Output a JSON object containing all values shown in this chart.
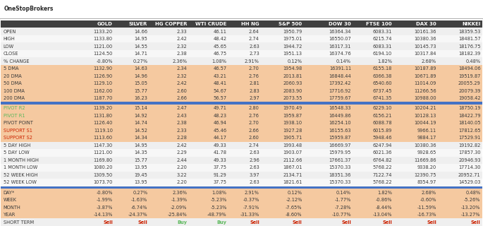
{
  "logo_text": "OneStopBrokers",
  "columns": [
    "",
    "GOLD",
    "SILVER",
    "HG COPPER",
    "WTI CRUDE",
    "HH NG",
    "S&P 500",
    "DOW 30",
    "FTSE 100",
    "DAX 30",
    "NIKKEI"
  ],
  "sections": [
    {
      "name": "ohlc",
      "bg_even": "#efefef",
      "bg_odd": "#f7f7f7",
      "rows": [
        [
          "OPEN",
          "1133.20",
          "14.66",
          "2.33",
          "46.11",
          "2.64",
          "1950.79",
          "16364.34",
          "6083.31",
          "10161.36",
          "18359.53"
        ],
        [
          "HIGH",
          "1133.80",
          "14.95",
          "2.42",
          "48.42",
          "2.74",
          "1975.01",
          "16550.07",
          "6215.74",
          "10380.36",
          "18481.57"
        ],
        [
          "LOW",
          "1121.00",
          "14.55",
          "2.32",
          "45.65",
          "2.63",
          "1944.72",
          "16317.31",
          "6083.31",
          "10145.73",
          "18176.75"
        ],
        [
          "CLOSE",
          "1124.50",
          "14.71",
          "2.38",
          "46.75",
          "2.73",
          "1951.13",
          "16374.76",
          "6194.10",
          "10317.84",
          "18182.39"
        ],
        [
          "% CHANGE",
          "-0.80%",
          "0.27%",
          "2.36%",
          "1.08%",
          "2.91%",
          "0.12%",
          "0.14%",
          "1.82%",
          "2.68%",
          "0.48%"
        ]
      ]
    },
    {
      "name": "dma",
      "bg": "#f5c9a0",
      "rows": [
        [
          "5 DMA",
          "1132.90",
          "14.63",
          "2.34",
          "46.57",
          "2.70",
          "1954.98",
          "16391.11",
          "6155.18",
          "10187.89",
          "18494.06"
        ],
        [
          "20 DMA",
          "1126.90",
          "14.96",
          "2.32",
          "43.21",
          "2.76",
          "2013.81",
          "16848.44",
          "6366.38",
          "10671.89",
          "19519.87"
        ],
        [
          "50 DMA",
          "1129.10",
          "15.05",
          "2.42",
          "48.41",
          "2.81",
          "2060.93",
          "17392.42",
          "6540.60",
          "11014.09",
          "20055.29"
        ],
        [
          "100 DMA",
          "1162.00",
          "15.77",
          "2.60",
          "54.67",
          "2.83",
          "2083.90",
          "17716.92",
          "6737.45",
          "11266.56",
          "20079.39"
        ],
        [
          "200 DMA",
          "1187.70",
          "16.23",
          "2.66",
          "56.57",
          "2.97",
          "2073.55",
          "17759.67",
          "6741.35",
          "10988.00",
          "19058.42"
        ]
      ]
    },
    {
      "name": "pivot",
      "bg": "#f5c9a0",
      "rows": [
        [
          "PIVOT R2",
          "1139.20",
          "15.14",
          "2.47",
          "49.71",
          "2.80",
          "1970.49",
          "16548.33",
          "6229.10",
          "10204.21",
          "18750.19"
        ],
        [
          "PIVOT R1",
          "1131.80",
          "14.92",
          "2.43",
          "48.23",
          "2.76",
          "1959.87",
          "16449.86",
          "6156.21",
          "10128.13",
          "18422.79"
        ],
        [
          "PIVOT POINT",
          "1126.40",
          "14.74",
          "2.38",
          "46.94",
          "2.70",
          "1938.10",
          "16254.10",
          "6088.78",
          "10044.19",
          "18140.05"
        ],
        [
          "SUPPORT S1",
          "1119.10",
          "14.52",
          "2.33",
          "45.46",
          "2.66",
          "1927.28",
          "16155.63",
          "6015.89",
          "9966.11",
          "17812.65"
        ],
        [
          "SUPPORT S2",
          "1113.60",
          "14.34",
          "2.28",
          "44.17",
          "2.60",
          "1905.71",
          "15959.87",
          "5948.46",
          "9884.17",
          "17529.91"
        ]
      ]
    },
    {
      "name": "range",
      "bg_even": "#efefef",
      "bg_odd": "#f7f7f7",
      "rows": [
        [
          "5 DAY HIGH",
          "1147.30",
          "14.95",
          "2.42",
          "49.33",
          "2.74",
          "1993.48",
          "16669.97",
          "6247.94",
          "10380.36",
          "19192.82"
        ],
        [
          "5 DAY LOW",
          "1121.00",
          "14.35",
          "2.29",
          "41.78",
          "2.63",
          "1903.07",
          "15979.95",
          "6021.36",
          "9928.65",
          "17857.30"
        ],
        [
          "1 MONTH HIGH",
          "1169.80",
          "15.77",
          "2.44",
          "49.33",
          "2.96",
          "2112.66",
          "17661.37",
          "6764.82",
          "11669.86",
          "20946.93"
        ],
        [
          "1 MONTH LOW",
          "1080.20",
          "13.95",
          "2.20",
          "37.75",
          "2.63",
          "1867.01",
          "15370.33",
          "5768.22",
          "9338.20",
          "17714.30"
        ],
        [
          "52 WEEK HIGH",
          "1309.50",
          "19.45",
          "3.22",
          "91.29",
          "3.97",
          "2134.71",
          "18351.36",
          "7122.74",
          "12390.75",
          "20952.71"
        ],
        [
          "52 WEEK LOW",
          "1073.70",
          "13.95",
          "2.20",
          "37.75",
          "2.63",
          "1821.61",
          "15370.33",
          "5768.22",
          "8354.97",
          "14529.03"
        ]
      ]
    },
    {
      "name": "performance",
      "bg": "#f5c9a0",
      "rows": [
        [
          "DAY*",
          "-0.80%",
          "0.27%",
          "2.36%",
          "1.08%",
          "2.91%",
          "0.12%",
          "0.14%",
          "1.82%",
          "2.68%",
          "0.48%"
        ],
        [
          "WEEK",
          "-1.99%",
          "-1.63%",
          "-1.39%",
          "-5.23%",
          "-0.37%",
          "-2.12%",
          "-1.77%",
          "-0.86%",
          "-0.60%",
          "-5.26%"
        ],
        [
          "MONTH",
          "-3.87%",
          "-6.74%",
          "-2.09%",
          "-5.23%",
          "-7.91%",
          "-7.65%",
          "-7.28%",
          "-8.44%",
          "-11.59%",
          "-13.20%"
        ],
        [
          "YEAR",
          "-14.13%",
          "-24.37%",
          "-25.84%",
          "-48.79%",
          "-31.33%",
          "-8.60%",
          "-10.77%",
          "-13.04%",
          "-16.73%",
          "-13.27%"
        ]
      ]
    },
    {
      "name": "signal",
      "bg": "#efefef",
      "rows": [
        [
          "SHORT TERM",
          "Sell",
          "Sell",
          "Buy",
          "Buy",
          "Sell",
          "Sell",
          "Sell",
          "Sell",
          "Sell",
          "Sell"
        ]
      ]
    }
  ],
  "header_bg": "#404040",
  "header_fg": "#ffffff",
  "divider_color": "#4472c4",
  "label_color": "#3a3a3a",
  "value_color": "#3a3a3a",
  "pivot_r_color": "#5cb85c",
  "support_color": "#cc2200",
  "sell_color": "#cc2200",
  "buy_color": "#5cb85c",
  "logo_color": "#2a2a2a",
  "col_widths_rel": [
    1.55,
    0.88,
    0.75,
    0.85,
    0.85,
    0.7,
    0.92,
    1.05,
    0.88,
    0.95,
    0.95
  ],
  "fontsize": 4.8,
  "header_fontsize": 5.0,
  "logo_fontsize": 5.5
}
